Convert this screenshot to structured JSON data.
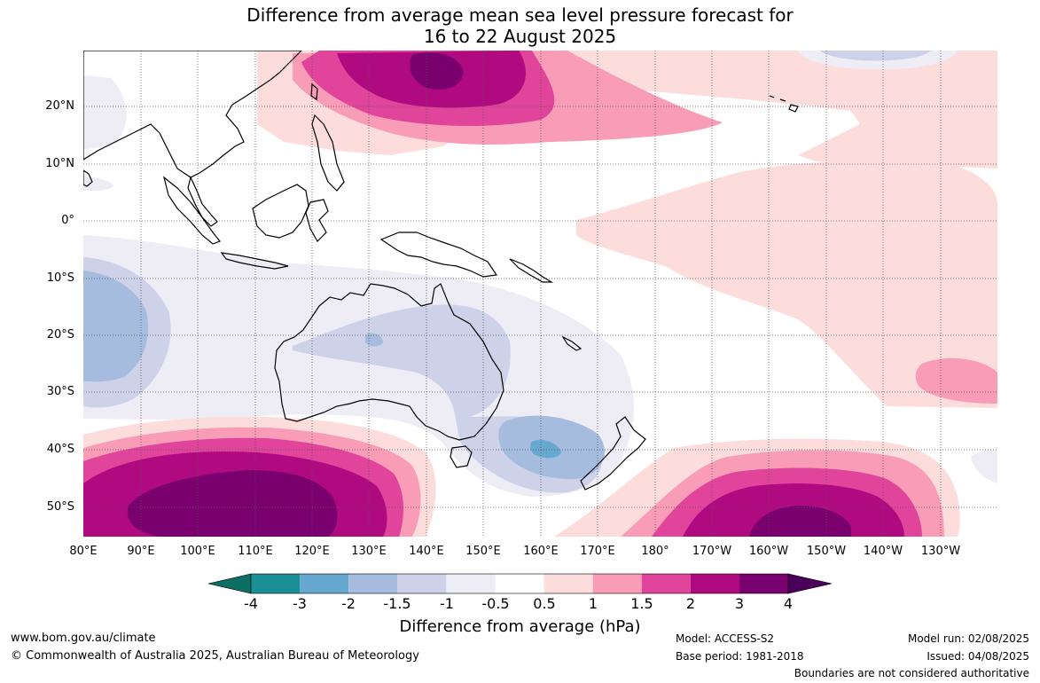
{
  "title": {
    "line1": "Difference from average mean sea level pressure forecast for",
    "line2": "16 to 22 August 2025"
  },
  "map": {
    "lat_labels": [
      "20°N",
      "10°N",
      "0°",
      "10°S",
      "20°S",
      "30°S",
      "40°S",
      "50°S"
    ],
    "lon_labels": [
      "80°E",
      "90°E",
      "100°E",
      "110°E",
      "120°E",
      "130°E",
      "140°E",
      "150°E",
      "160°E",
      "170°E",
      "180°",
      "170°W",
      "160°W",
      "150°W",
      "140°W",
      "130°W"
    ],
    "grid": true
  },
  "colorbar": {
    "title": "Difference from average (hPa)",
    "labels": [
      "-4",
      "-3",
      "-2",
      "-1.5",
      "-1",
      "-0.5",
      "0.5",
      "1",
      "1.5",
      "2",
      "3",
      "4"
    ],
    "colors": [
      "#0c6f64",
      "#1a8f94",
      "#66a8d0",
      "#a6bcde",
      "#cdd2e8",
      "#eeedf5",
      "#ffffff",
      "#fddcdc",
      "#f89cb7",
      "#e0459b",
      "#b00a81",
      "#7a006f",
      "#4a005a"
    ]
  },
  "footer": {
    "url": "www.bom.gov.au/climate",
    "copyright": "© Commonwealth of Australia 2025, Australian Bureau of Meteorology",
    "model": "Model: ACCESS-S2",
    "base_period": "Base period: 1981-2018",
    "model_run": "Model run: 02/08/2025",
    "issued": "Issued: 04/08/2025",
    "disclaimer": "Boundaries are not considered authoritative"
  }
}
